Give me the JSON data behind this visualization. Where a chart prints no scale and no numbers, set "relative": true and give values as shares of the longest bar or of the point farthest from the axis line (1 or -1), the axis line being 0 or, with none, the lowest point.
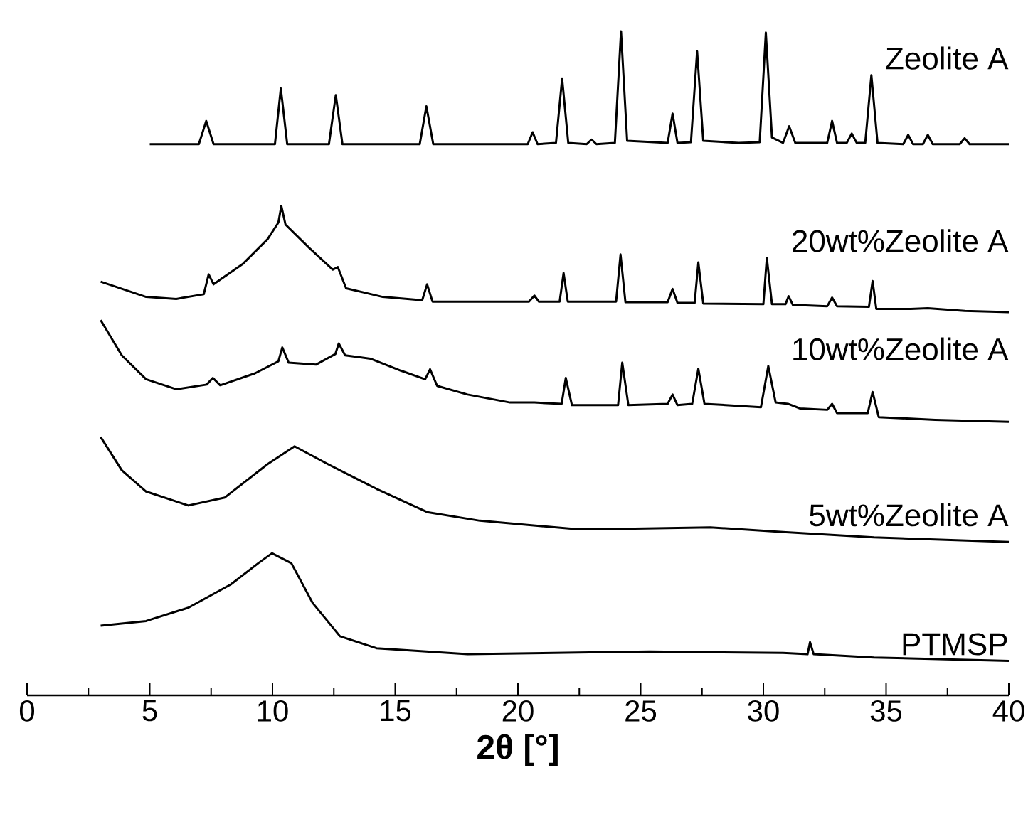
{
  "chart_data": {
    "type": "line",
    "relative": true,
    "xlabel": "2θ [°]",
    "xlim": [
      0,
      40
    ],
    "xticks": [
      0,
      {
        "value": 2.5,
        "label": null
      },
      5,
      {
        "value": 7.5,
        "label": null
      },
      10,
      {
        "value": 12.5,
        "label": null
      },
      15,
      {
        "value": 17.5,
        "label": null
      },
      20,
      {
        "value": 22.5,
        "label": null
      },
      25,
      {
        "value": 27.5,
        "label": null
      },
      30,
      {
        "value": 32.5,
        "label": null
      },
      35,
      {
        "value": 37.5,
        "label": null
      },
      40
    ],
    "series": [
      {
        "name": "Zeolite A",
        "color": "#000000",
        "x": [
          5.0,
          7.0,
          7.3,
          7.6,
          10.1,
          10.34,
          10.6,
          12.3,
          12.58,
          12.85,
          16.0,
          16.27,
          16.55,
          20.4,
          20.6,
          20.8,
          21.55,
          21.8,
          22.05,
          22.8,
          23.0,
          23.2,
          23.95,
          24.2,
          24.45,
          26.1,
          26.3,
          26.5,
          27.05,
          27.3,
          27.55,
          29.0,
          29.85,
          30.1,
          30.35,
          30.8,
          31.05,
          31.3,
          32.6,
          32.8,
          33.0,
          33.4,
          33.6,
          33.8,
          34.15,
          34.4,
          34.65,
          35.7,
          35.9,
          36.1,
          36.5,
          36.7,
          36.9,
          38.0,
          38.2,
          38.4,
          40.0
        ],
        "values": [
          0.83,
          0.83,
          0.865,
          0.83,
          0.83,
          0.914,
          0.83,
          0.83,
          0.904,
          0.83,
          0.83,
          0.887,
          0.83,
          0.83,
          0.848,
          0.83,
          0.832,
          0.929,
          0.832,
          0.83,
          0.837,
          0.83,
          0.832,
          1.0,
          0.835,
          0.832,
          0.876,
          0.832,
          0.833,
          0.97,
          0.835,
          0.832,
          0.833,
          0.998,
          0.84,
          0.832,
          0.857,
          0.832,
          0.832,
          0.865,
          0.832,
          0.832,
          0.846,
          0.832,
          0.832,
          0.934,
          0.832,
          0.83,
          0.844,
          0.83,
          0.83,
          0.844,
          0.83,
          0.83,
          0.839,
          0.83,
          0.83
        ]
      },
      {
        "name": "20wt%Zeolite A",
        "color": "#000000",
        "x": [
          3.0,
          4.85,
          6.08,
          7.2,
          7.4,
          7.6,
          8.8,
          9.8,
          10.24,
          10.36,
          10.53,
          11.52,
          12.46,
          12.66,
          13.0,
          14.49,
          16.1,
          16.3,
          16.52,
          20.45,
          20.67,
          20.85,
          21.7,
          21.86,
          22.03,
          24.0,
          24.18,
          24.38,
          26.1,
          26.3,
          26.5,
          27.2,
          27.35,
          27.55,
          30.0,
          30.14,
          30.35,
          30.9,
          31.03,
          31.2,
          32.6,
          32.8,
          33.0,
          34.3,
          34.45,
          34.6,
          36.0,
          36.7,
          38.2,
          40.0
        ],
        "values": [
          0.623,
          0.6,
          0.597,
          0.604,
          0.634,
          0.619,
          0.65,
          0.687,
          0.712,
          0.737,
          0.709,
          0.673,
          0.641,
          0.645,
          0.613,
          0.6,
          0.595,
          0.619,
          0.593,
          0.593,
          0.602,
          0.593,
          0.593,
          0.636,
          0.593,
          0.593,
          0.664,
          0.592,
          0.592,
          0.612,
          0.591,
          0.591,
          0.652,
          0.59,
          0.589,
          0.659,
          0.589,
          0.589,
          0.601,
          0.588,
          0.586,
          0.599,
          0.586,
          0.585,
          0.624,
          0.582,
          0.582,
          0.583,
          0.579,
          0.577
        ]
      },
      {
        "name": "10wt%Zeolite A",
        "color": "#000000",
        "x": [
          3.0,
          3.86,
          4.85,
          6.08,
          7.32,
          7.57,
          7.87,
          9.29,
          10.24,
          10.4,
          10.66,
          11.77,
          12.56,
          12.7,
          12.96,
          13.99,
          15.23,
          16.22,
          16.42,
          16.71,
          17.95,
          19.68,
          20.67,
          21.78,
          21.95,
          22.2,
          24.08,
          24.25,
          24.5,
          26.1,
          26.3,
          26.5,
          27.1,
          27.35,
          27.6,
          29.9,
          30.2,
          30.5,
          31.0,
          31.5,
          32.6,
          32.8,
          33.0,
          34.25,
          34.45,
          34.7,
          37.0,
          40.0
        ],
        "values": [
          0.565,
          0.512,
          0.476,
          0.461,
          0.468,
          0.478,
          0.467,
          0.485,
          0.503,
          0.524,
          0.501,
          0.498,
          0.514,
          0.53,
          0.512,
          0.507,
          0.489,
          0.476,
          0.491,
          0.466,
          0.453,
          0.441,
          0.441,
          0.439,
          0.478,
          0.437,
          0.437,
          0.501,
          0.437,
          0.439,
          0.453,
          0.437,
          0.439,
          0.492,
          0.439,
          0.434,
          0.496,
          0.441,
          0.439,
          0.432,
          0.43,
          0.439,
          0.425,
          0.425,
          0.457,
          0.419,
          0.415,
          0.412
        ]
      },
      {
        "name": "5wt%Zeolite A",
        "color": "#000000",
        "x": [
          3.0,
          3.86,
          4.85,
          6.57,
          8.06,
          9.79,
          10.9,
          12.27,
          14.24,
          16.3,
          18.45,
          22.15,
          24.75,
          27.84,
          30.8,
          34.5,
          40.0
        ],
        "values": [
          0.389,
          0.339,
          0.307,
          0.286,
          0.298,
          0.348,
          0.375,
          0.348,
          0.311,
          0.276,
          0.263,
          0.251,
          0.251,
          0.253,
          0.246,
          0.238,
          0.231
        ]
      },
      {
        "name": "PTMSP",
        "color": "#000000",
        "x": [
          3.0,
          4.85,
          6.57,
          8.3,
          9.42,
          9.98,
          10.77,
          11.64,
          12.75,
          14.24,
          17.95,
          25.37,
          30.8,
          31.8,
          31.9,
          32.05,
          34.5,
          40.0
        ],
        "values": [
          0.105,
          0.112,
          0.132,
          0.167,
          0.199,
          0.214,
          0.199,
          0.139,
          0.089,
          0.071,
          0.062,
          0.066,
          0.064,
          0.062,
          0.08,
          0.062,
          0.057,
          0.052
        ]
      }
    ]
  }
}
